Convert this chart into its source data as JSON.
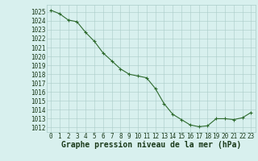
{
  "x": [
    0,
    1,
    2,
    3,
    4,
    5,
    6,
    7,
    8,
    9,
    10,
    11,
    12,
    13,
    14,
    15,
    16,
    17,
    18,
    19,
    20,
    21,
    22,
    23
  ],
  "y": [
    1025.2,
    1024.8,
    1024.1,
    1023.9,
    1022.7,
    1021.7,
    1020.4,
    1019.5,
    1018.6,
    1018.0,
    1017.8,
    1017.6,
    1016.4,
    1014.7,
    1013.5,
    1012.9,
    1012.3,
    1012.1,
    1012.2,
    1013.0,
    1013.0,
    1012.9,
    1013.1,
    1013.7
  ],
  "ylim_min": 1011.5,
  "ylim_max": 1025.8,
  "xlim_min": -0.5,
  "xlim_max": 23.5,
  "yticks": [
    1012,
    1013,
    1014,
    1015,
    1016,
    1017,
    1018,
    1019,
    1020,
    1021,
    1022,
    1023,
    1024,
    1025
  ],
  "xticks": [
    0,
    1,
    2,
    3,
    4,
    5,
    6,
    7,
    8,
    9,
    10,
    11,
    12,
    13,
    14,
    15,
    16,
    17,
    18,
    19,
    20,
    21,
    22,
    23
  ],
  "line_color": "#2d6a2d",
  "marker_color": "#2d6a2d",
  "bg_color": "#d8f0ee",
  "grid_color": "#aaccc8",
  "xlabel": "Graphe pression niveau de la mer (hPa)",
  "xlabel_fontsize": 7,
  "tick_fontsize": 5.5
}
